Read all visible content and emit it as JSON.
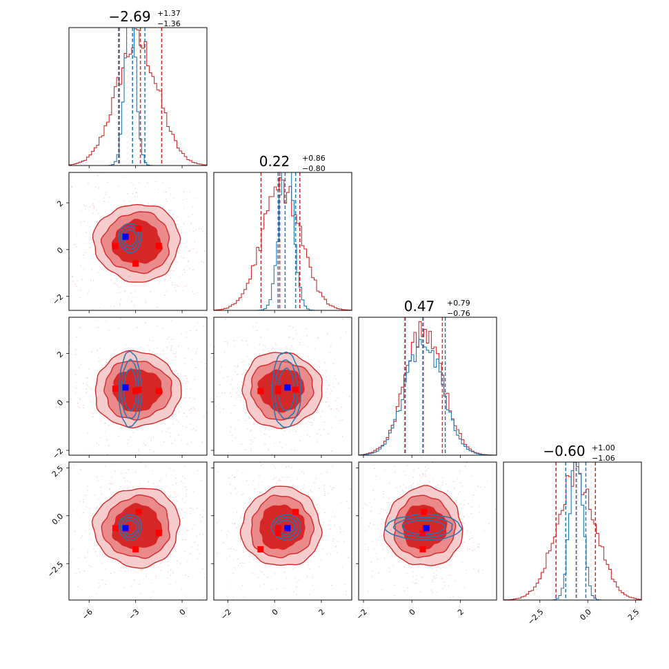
{
  "chart_data": {
    "type": "corner",
    "parameters": 4,
    "series": [
      {
        "name": "",
        "color": "#d62728"
      },
      {
        "name": "",
        "color": "#1f77b4"
      }
    ],
    "marker_colors": {
      "red_points": "#ff0000",
      "blue_points": "#0000ff"
    },
    "titles": [
      {
        "main": "−2.69",
        "sup": "+1.37",
        "sub": "−1.36"
      },
      {
        "main": "0.22",
        "sup": "+0.86",
        "sub": "−0.80"
      },
      {
        "main": "0.47",
        "sup": "+0.79",
        "sub": "−0.76"
      },
      {
        "main": "−0.60",
        "sup": "+1.00",
        "sub": "−1.06"
      }
    ],
    "axis_ranges": [
      [
        -7.3,
        1.6
      ],
      [
        -2.6,
        3.3
      ],
      [
        -2.2,
        3.5
      ],
      [
        -4.4,
        2.8
      ]
    ],
    "tick_labels": {
      "p1": [
        "−6",
        "−3",
        "0"
      ],
      "p2": [
        "−2",
        "0",
        "2"
      ],
      "p3": [
        "−2",
        "0",
        "2"
      ],
      "p4": [
        "−2.5",
        "0.0",
        "2.5"
      ]
    },
    "tick_values": {
      "p1": [
        -6,
        -3,
        0
      ],
      "p2": [
        -2,
        0,
        2
      ],
      "p3": [
        -2,
        0,
        2
      ],
      "p4": [
        -2.5,
        0.0,
        2.5
      ]
    },
    "quantiles_red": [
      [
        -4.05,
        -2.69,
        -1.32
      ],
      [
        -0.58,
        0.22,
        1.08
      ],
      [
        -0.29,
        0.47,
        1.26
      ],
      [
        -1.66,
        -0.6,
        0.4
      ]
    ],
    "quantiles_blue": [
      [
        -4.1,
        -3.2,
        -2.4
      ],
      [
        0.15,
        0.45,
        0.9
      ],
      [
        -0.27,
        0.45,
        1.38
      ],
      [
        -1.15,
        -0.6,
        -0.1
      ]
    ],
    "centers_red": [
      -2.9,
      0.3,
      0.5,
      -0.6
    ],
    "sigmas_red": [
      1.35,
      0.83,
      0.78,
      1.03
    ],
    "centers_blue": [
      -3.35,
      0.5,
      0.5,
      -0.6
    ],
    "sigmas_blue": [
      0.35,
      0.3,
      0.75,
      0.32
    ],
    "red_points": [
      [
        -4.3,
        0.15,
        0.55,
        -0.65
      ],
      [
        -2.8,
        0.9,
        0.5,
        0.2
      ],
      [
        -3.0,
        -0.6,
        0.45,
        -1.75
      ],
      [
        -1.5,
        0.15,
        0.45,
        -0.9
      ]
    ],
    "blue_point": [
      -3.65,
      0.55,
      0.6,
      -0.65
    ]
  }
}
